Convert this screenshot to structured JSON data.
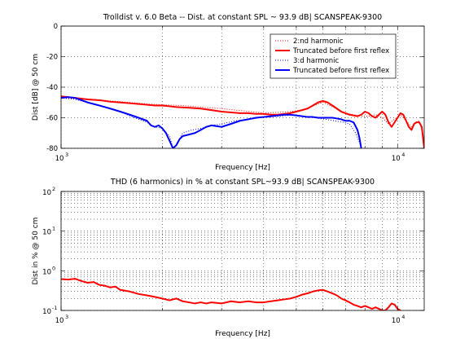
{
  "chart_data": [
    {
      "type": "line",
      "title": "Trolldist v. 6.0 Beta -- Dist. at constant SPL ~ 93.9 dB| SCANSPEAK-9300",
      "xlabel": "Frequency [Hz]",
      "ylabel": "Dist [dB] @ 50 cm",
      "xscale": "log",
      "xlim": [
        1000,
        12000
      ],
      "ylim": [
        -80,
        0
      ],
      "yticks": [
        0,
        -20,
        -40,
        -60,
        -80
      ],
      "yticklabels": [
        "0",
        "-20",
        "-40",
        "-60",
        "-80"
      ],
      "xticks": [
        1000,
        10000
      ],
      "xtick_base": "10",
      "xtick_exponents": [
        "3",
        "4"
      ],
      "grid": true,
      "legend_position": "top-right",
      "legend_entries": [
        {
          "label": "2:nd harmonic",
          "color": "#ff0000",
          "style": "dotted"
        },
        {
          "label": "Truncated before first reflex",
          "color": "#ff0000",
          "style": "solid"
        },
        {
          "label": "3:d harmonic",
          "color": "#0000ff",
          "style": "dotted"
        },
        {
          "label": "Truncated before first reflex",
          "color": "#0000ff",
          "style": "solid"
        }
      ],
      "series": [
        {
          "color": "#ff0000",
          "style": "dotted",
          "width": 1,
          "x": [
            1000,
            1100,
            1250,
            1400,
            1600,
            1800,
            2000,
            2300,
            2600,
            3000,
            3300,
            3700,
            4000,
            4400,
            4800,
            5200,
            5500,
            5800,
            6000,
            6300,
            6700,
            7000,
            7400,
            7800,
            8200,
            8600,
            9000,
            9400,
            9800,
            10200,
            10600,
            11000,
            11300,
            11600,
            11800
          ],
          "y": [
            -47,
            -47.5,
            -48,
            -49,
            -50,
            -51,
            -51.5,
            -52,
            -53,
            -54,
            -55,
            -56,
            -57,
            -56.5,
            -56,
            -55,
            -53,
            -51,
            -50,
            -52,
            -55,
            -57,
            -58,
            -59,
            -59,
            -58,
            -60,
            -64,
            -61,
            -58,
            -62,
            -66,
            -63,
            -62,
            -68
          ]
        },
        {
          "color": "#ff0000",
          "style": "solid",
          "width": 2,
          "x": [
            1000,
            1050,
            1100,
            1200,
            1300,
            1400,
            1500,
            1600,
            1700,
            1800,
            1900,
            2000,
            2100,
            2200,
            2400,
            2600,
            2800,
            3000,
            3200,
            3400,
            3600,
            3800,
            4000,
            4200,
            4400,
            4600,
            4800,
            5000,
            5200,
            5400,
            5600,
            5800,
            6000,
            6200,
            6400,
            6600,
            6800,
            7000,
            7200,
            7400,
            7600,
            7800,
            8000,
            8200,
            8400,
            8600,
            8800,
            9000,
            9200,
            9400,
            9600,
            9800,
            10000,
            10200,
            10400,
            10600,
            10800,
            11000,
            11200,
            11400,
            11600,
            11800,
            12000
          ],
          "y": [
            -46,
            -46.5,
            -47,
            -48,
            -48.5,
            -49.5,
            -50,
            -50.5,
            -51,
            -51.5,
            -52,
            -52,
            -52.5,
            -53,
            -53.5,
            -54,
            -55,
            -56,
            -56.5,
            -57,
            -57,
            -57.5,
            -57.5,
            -58,
            -58,
            -57.5,
            -57,
            -56,
            -55,
            -54,
            -52,
            -50,
            -49,
            -50,
            -52,
            -54,
            -56,
            -57,
            -58,
            -58.5,
            -59,
            -58,
            -56,
            -57,
            -59,
            -60,
            -58,
            -56,
            -58,
            -63,
            -66,
            -63,
            -60,
            -57,
            -58,
            -62,
            -66,
            -68,
            -64,
            -63,
            -63,
            -66,
            -80
          ]
        },
        {
          "color": "#0000ff",
          "style": "dotted",
          "width": 1,
          "x": [
            1000,
            1100,
            1200,
            1350,
            1500,
            1650,
            1800,
            1900,
            2000,
            2100,
            2150,
            2200,
            2300,
            2450,
            2600,
            2800,
            3000,
            3300,
            3600,
            3900,
            4200,
            4500,
            4900,
            5300,
            5700,
            6100,
            6500,
            6900,
            7200,
            7500,
            7700,
            7800
          ],
          "y": [
            -47,
            -48,
            -50,
            -53,
            -56,
            -60,
            -63,
            -66,
            -67,
            -72,
            -80,
            -78,
            -70,
            -68,
            -67,
            -65,
            -64,
            -62,
            -61,
            -60,
            -59.5,
            -59,
            -58,
            -59,
            -60,
            -61,
            -62,
            -63,
            -64,
            -70,
            -76,
            -80
          ]
        },
        {
          "color": "#0000ff",
          "style": "solid",
          "width": 2,
          "x": [
            1000,
            1050,
            1100,
            1150,
            1200,
            1300,
            1400,
            1500,
            1600,
            1700,
            1800,
            1850,
            1900,
            1950,
            2000,
            2050,
            2100,
            2150,
            2200,
            2250,
            2300,
            2400,
            2500,
            2600,
            2700,
            2800,
            3000,
            3200,
            3400,
            3600,
            3800,
            4000,
            4200,
            4400,
            4600,
            4800,
            5000,
            5200,
            5400,
            5600,
            5800,
            6000,
            6200,
            6400,
            6600,
            6800,
            7000,
            7200,
            7400,
            7600,
            7700,
            7800
          ],
          "y": [
            -47,
            -46.5,
            -47,
            -48.5,
            -50,
            -52,
            -54,
            -56,
            -58,
            -60,
            -62,
            -65,
            -66,
            -65,
            -67,
            -70,
            -75,
            -80,
            -78,
            -74,
            -72,
            -71,
            -70,
            -68,
            -66,
            -65,
            -66,
            -64,
            -62,
            -61,
            -60,
            -59.5,
            -59,
            -58.5,
            -58,
            -58,
            -58.5,
            -59,
            -59.5,
            -59.5,
            -60,
            -60,
            -60,
            -60,
            -60.5,
            -61,
            -62,
            -62,
            -63,
            -68,
            -73,
            -80
          ]
        }
      ]
    },
    {
      "type": "line",
      "title": "THD (6 harmonics) in % at constant SPL~93.9 dB| SCANSPEAK-9300",
      "xlabel": "Frequency [Hz]",
      "ylabel": "Dist in % @ 50 cm",
      "xscale": "log",
      "yscale": "log",
      "xlim": [
        1000,
        12000
      ],
      "ylim": [
        0.1,
        100
      ],
      "yticks": [
        0.1,
        1,
        10,
        100
      ],
      "ytick_base": "10",
      "ytick_exponents": [
        "-1",
        "0",
        "1",
        "2"
      ],
      "xticks": [
        1000,
        10000
      ],
      "xtick_base": "10",
      "xtick_exponents": [
        "3",
        "4"
      ],
      "grid": true,
      "series": [
        {
          "color": "#ff0000",
          "style": "solid",
          "width": 2,
          "x": [
            1000,
            1050,
            1100,
            1150,
            1200,
            1250,
            1300,
            1350,
            1400,
            1450,
            1500,
            1600,
            1700,
            1800,
            1900,
            2000,
            2100,
            2200,
            2300,
            2400,
            2500,
            2600,
            2700,
            2800,
            3000,
            3200,
            3400,
            3600,
            3800,
            4000,
            4200,
            4400,
            4600,
            4800,
            5000,
            5200,
            5400,
            5600,
            5800,
            6000,
            6200,
            6400,
            6600,
            6800,
            7000,
            7200,
            7400,
            7600,
            7800,
            8000,
            8200,
            8400,
            8600,
            8800,
            9000,
            9200,
            9400,
            9600,
            9800,
            10000,
            10200
          ],
          "y": [
            0.62,
            0.6,
            0.63,
            0.55,
            0.5,
            0.52,
            0.44,
            0.42,
            0.38,
            0.4,
            0.33,
            0.3,
            0.26,
            0.24,
            0.22,
            0.2,
            0.18,
            0.2,
            0.17,
            0.16,
            0.15,
            0.16,
            0.15,
            0.16,
            0.15,
            0.17,
            0.16,
            0.17,
            0.16,
            0.16,
            0.17,
            0.18,
            0.19,
            0.2,
            0.22,
            0.25,
            0.27,
            0.3,
            0.32,
            0.33,
            0.3,
            0.27,
            0.24,
            0.2,
            0.18,
            0.16,
            0.14,
            0.13,
            0.12,
            0.13,
            0.12,
            0.11,
            0.12,
            0.11,
            0.1,
            0.1,
            0.12,
            0.15,
            0.14,
            0.11,
            0.1
          ]
        }
      ]
    }
  ]
}
